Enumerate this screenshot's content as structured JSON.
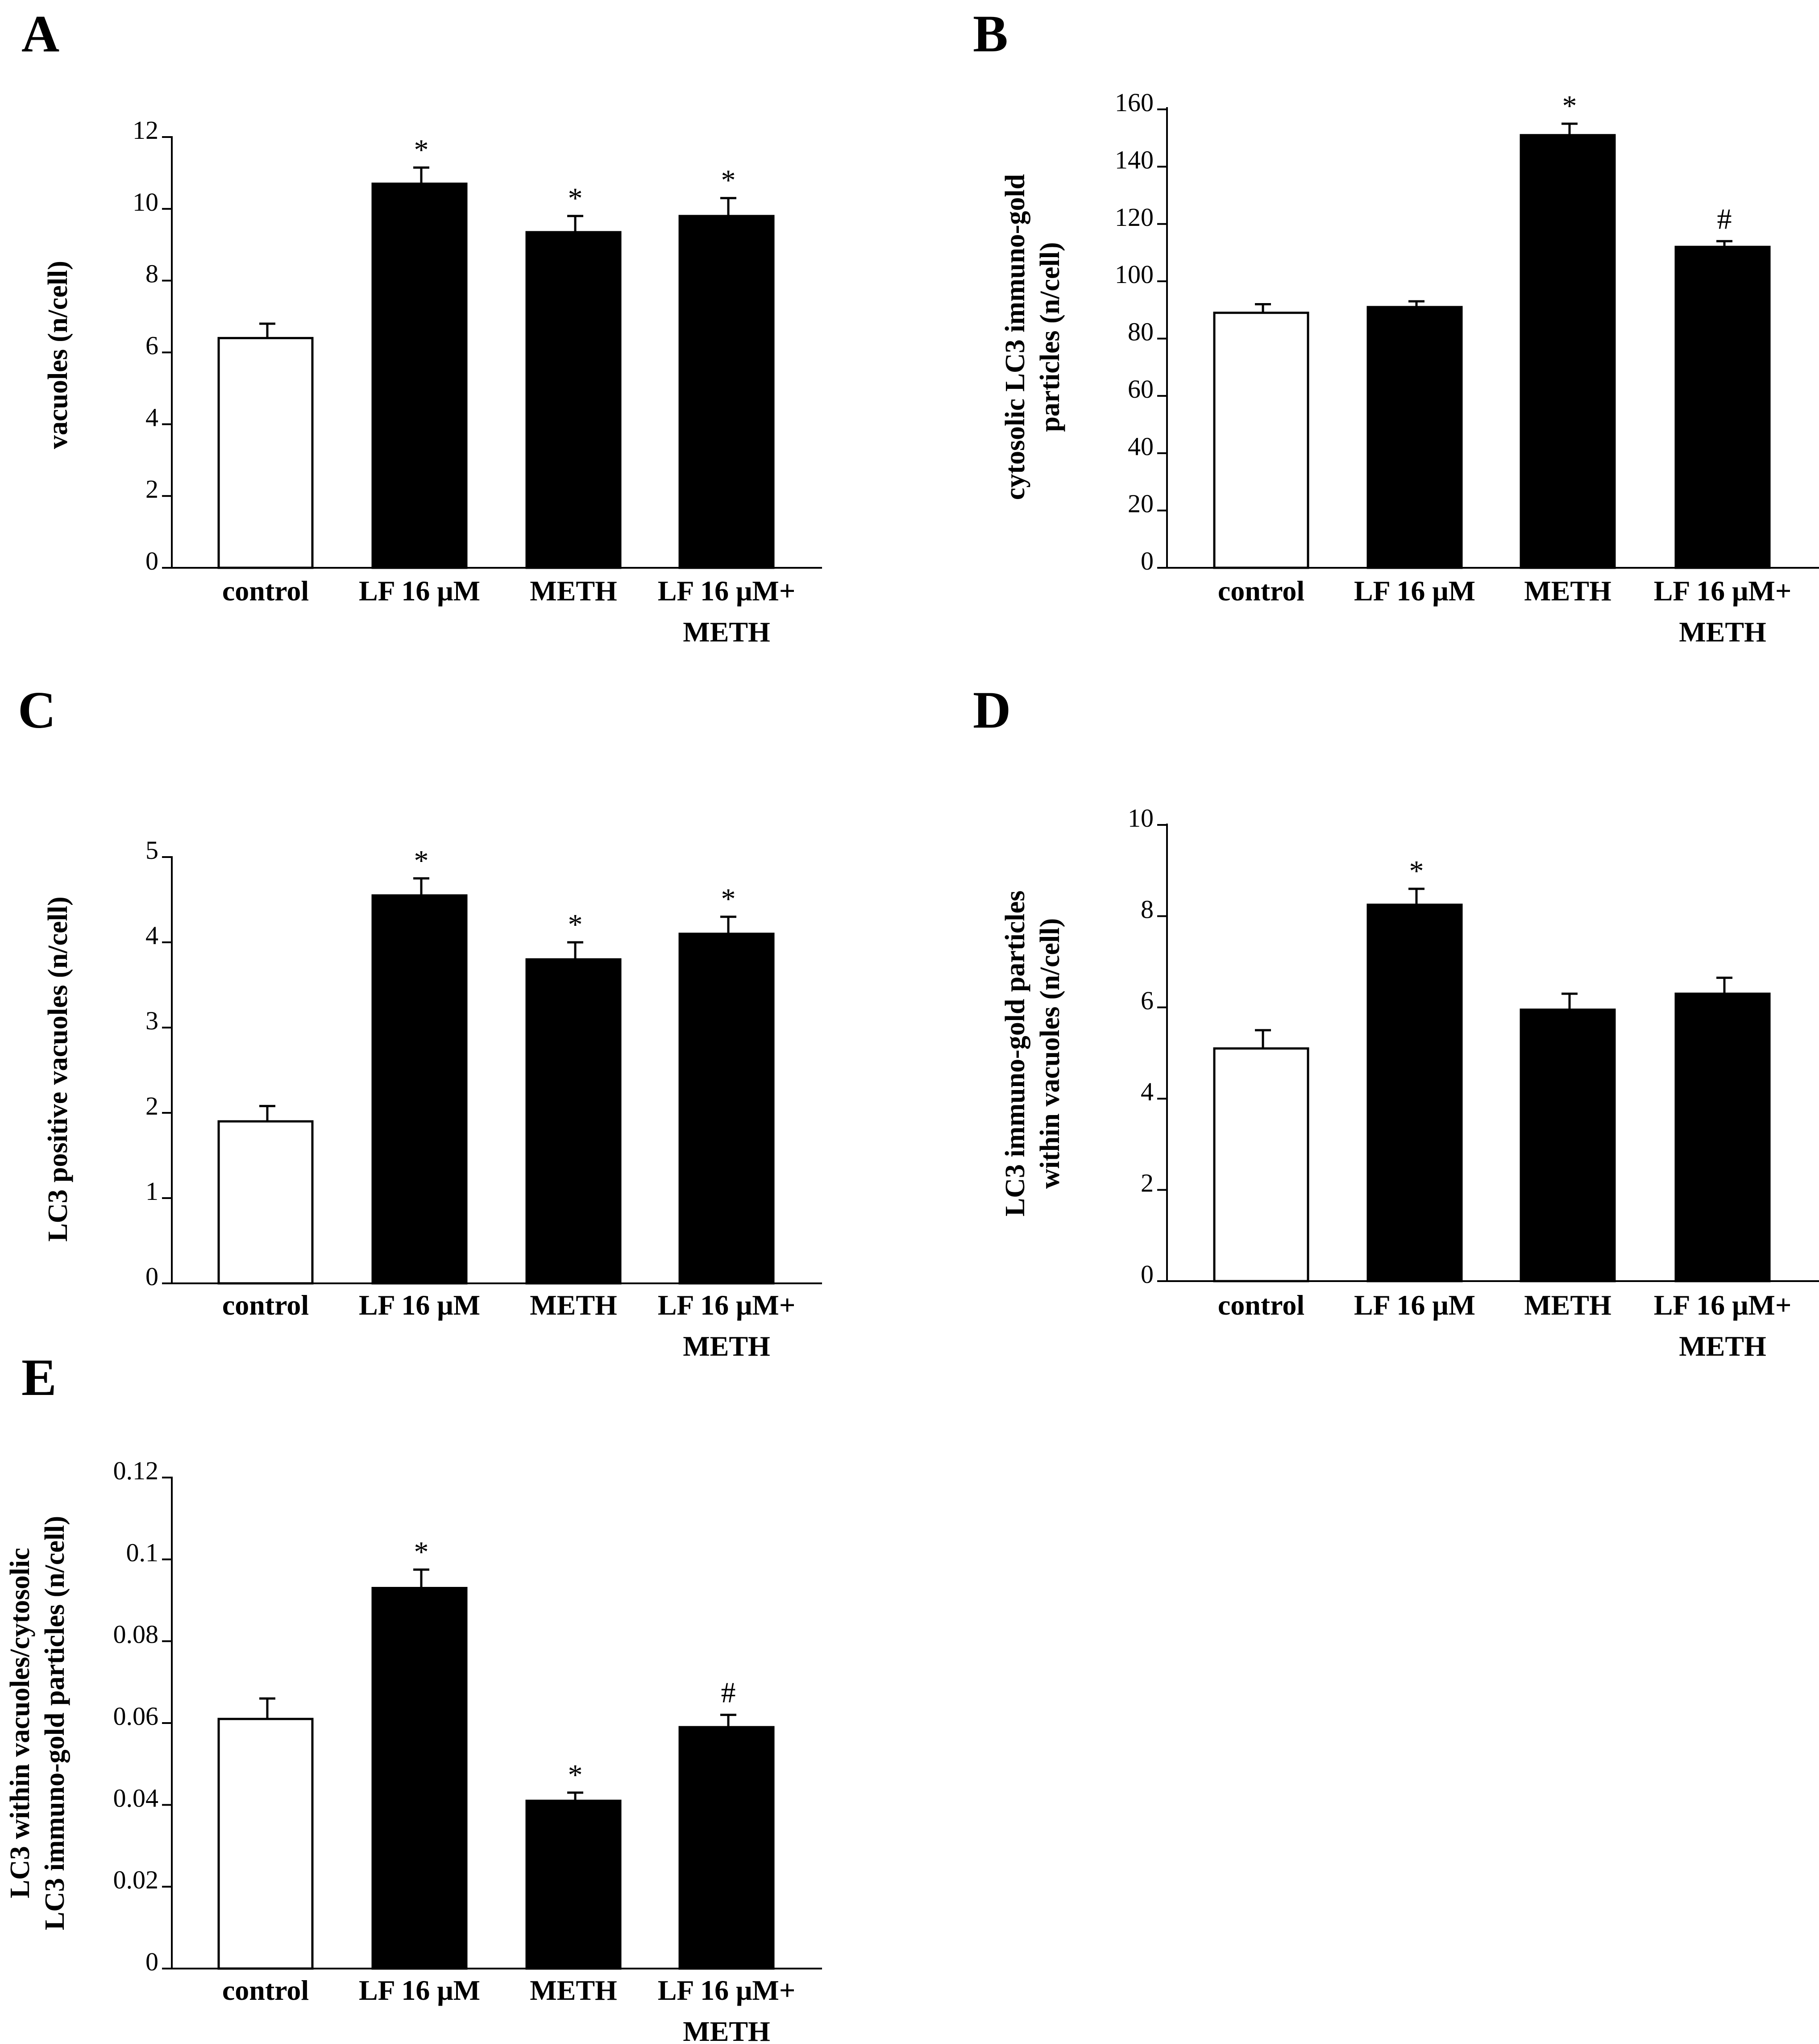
{
  "figure": {
    "colors": {
      "control_fill": "#ffffff",
      "treatment_fill": "#000000",
      "axis": "#000000"
    }
  },
  "chart_data": [
    {
      "panel": "A",
      "type": "bar",
      "categories": [
        "control",
        "LF 16 μM",
        "METH",
        "LF 16 μM+ METH"
      ],
      "values": [
        6.4,
        10.7,
        9.35,
        9.8
      ],
      "errors": [
        0.4,
        0.45,
        0.45,
        0.5
      ],
      "markers": [
        "",
        "*",
        "*",
        "*"
      ],
      "ylabel_lines": [
        "vacuoles (n/cell)"
      ],
      "yticks": [
        "0",
        "2",
        "4",
        "6",
        "8",
        "10",
        "12"
      ],
      "ylim": [
        0,
        12
      ],
      "xlabel": ""
    },
    {
      "panel": "B",
      "type": "bar",
      "categories": [
        "control",
        "LF 16 μM",
        "METH",
        "LF 16 μM+ METH"
      ],
      "values": [
        89,
        91,
        151,
        112
      ],
      "errors": [
        3,
        2,
        4,
        2
      ],
      "markers": [
        "",
        "",
        "*",
        "#"
      ],
      "ylabel_lines": [
        "cytosolic LC3 immuno-gold",
        "particles (n/cell)"
      ],
      "yticks": [
        "0",
        "20",
        "40",
        "60",
        "80",
        "100",
        "120",
        "140",
        "160"
      ],
      "ylim": [
        0,
        160
      ],
      "xlabel": ""
    },
    {
      "panel": "C",
      "type": "bar",
      "categories": [
        "control",
        "LF 16 μM",
        "METH",
        "LF 16 μM+ METH"
      ],
      "values": [
        1.9,
        4.55,
        3.8,
        4.1
      ],
      "errors": [
        0.18,
        0.2,
        0.2,
        0.2
      ],
      "markers": [
        "",
        "*",
        "*",
        "*"
      ],
      "ylabel_lines": [
        "LC3 positive vacuoles (n/cell)"
      ],
      "yticks": [
        "0",
        "1",
        "2",
        "3",
        "4",
        "5"
      ],
      "ylim": [
        0,
        5
      ],
      "xlabel": ""
    },
    {
      "panel": "D",
      "type": "bar",
      "categories": [
        "control",
        "LF 16 μM",
        "METH",
        "LF 16 μM+ METH"
      ],
      "values": [
        5.1,
        8.25,
        5.95,
        6.3
      ],
      "errors": [
        0.4,
        0.35,
        0.35,
        0.35
      ],
      "markers": [
        "",
        "*",
        "",
        ""
      ],
      "ylabel_lines": [
        "LC3 immuno-gold particles",
        "within vacuoles (n/cell)"
      ],
      "yticks": [
        "0",
        "2",
        "4",
        "6",
        "8",
        "10"
      ],
      "ylim": [
        0,
        10
      ],
      "xlabel": ""
    },
    {
      "panel": "E",
      "type": "bar",
      "categories": [
        "control",
        "LF 16 μM",
        "METH",
        "LF 16 μM+ METH"
      ],
      "values": [
        0.061,
        0.093,
        0.041,
        0.059
      ],
      "errors": [
        0.005,
        0.0045,
        0.002,
        0.003
      ],
      "markers": [
        "",
        "*",
        "*",
        "#"
      ],
      "ylabel_lines": [
        "LC3  within vacuoles/cytosolic",
        "LC3 immuno-gold particles (n/cell)"
      ],
      "yticks": [
        "0",
        "0.02",
        "0.04",
        "0.06",
        "0.08",
        "0.1",
        "0.12"
      ],
      "ylim": [
        0,
        0.12
      ],
      "xlabel": ""
    }
  ]
}
